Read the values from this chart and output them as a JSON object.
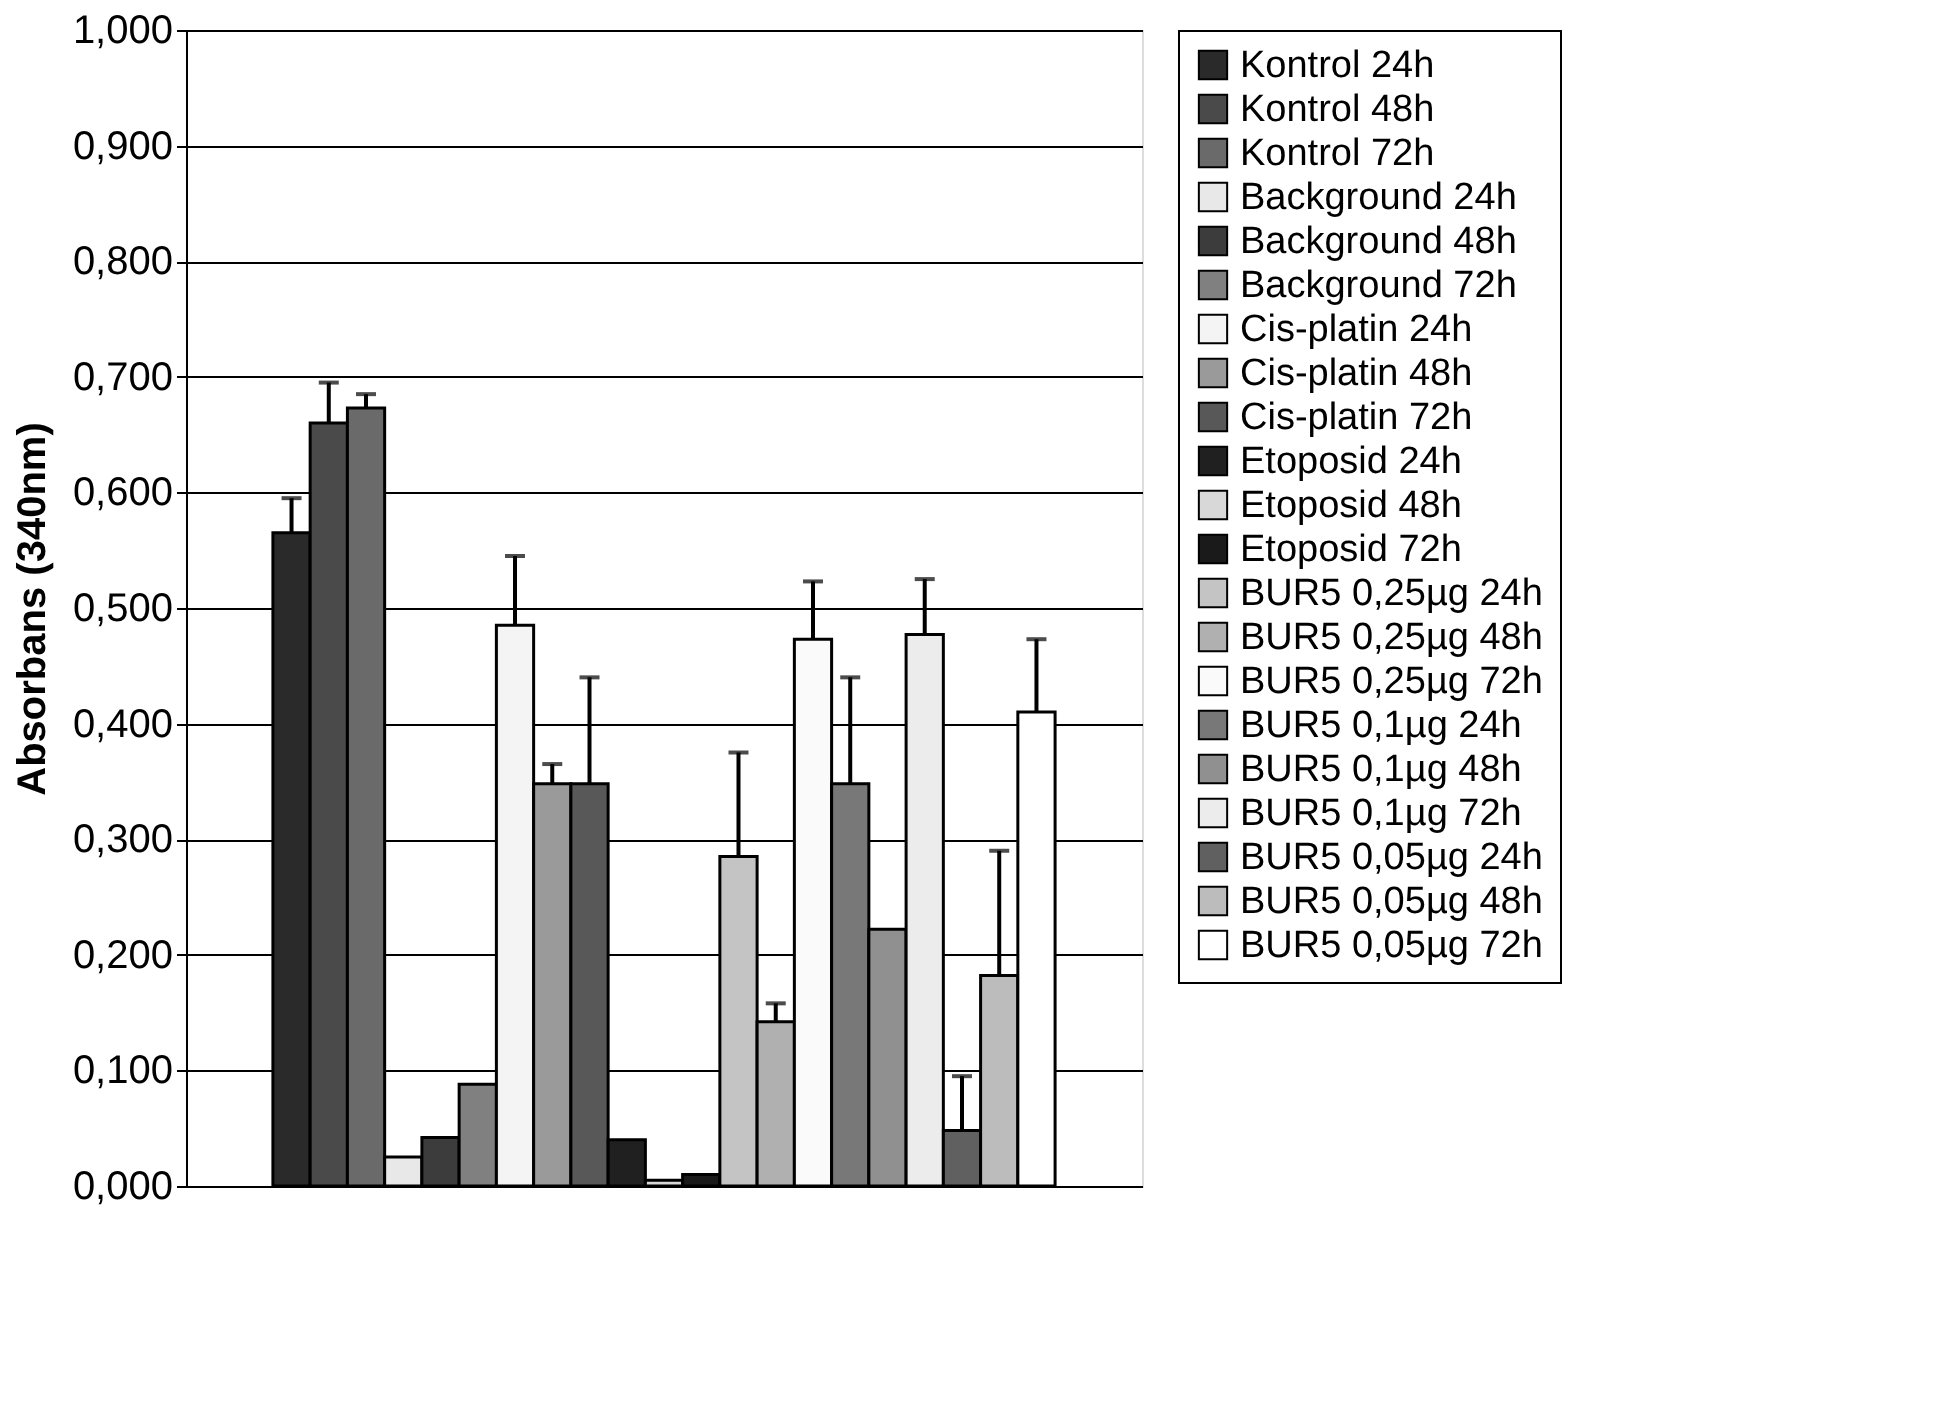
{
  "chart_data": {
    "type": "bar",
    "ylabel": "Absorbans (340nm)",
    "categories": [
      null
    ],
    "ylim": [
      0,
      1
    ],
    "yticks": [
      {
        "value": 0,
        "label": "0,000"
      },
      {
        "value": 0.1,
        "label": "0,100"
      },
      {
        "value": 0.2,
        "label": "0,200"
      },
      {
        "value": 0.3,
        "label": "0,300"
      },
      {
        "value": 0.4,
        "label": "0,400"
      },
      {
        "value": 0.5,
        "label": "0,500"
      },
      {
        "value": 0.6,
        "label": "0,600"
      },
      {
        "value": 0.7,
        "label": "0,700"
      },
      {
        "value": 0.8,
        "label": "0,800"
      },
      {
        "value": 0.9,
        "label": "0,900"
      },
      {
        "value": 1,
        "label": "1,000"
      }
    ],
    "grid": "y",
    "legend": "right",
    "tick_labels": "y",
    "series": [
      {
        "name": "Kontrol 24h",
        "color": "#2a2a2a",
        "values": [
          0.565
        ],
        "errors": [
          0.03
        ]
      },
      {
        "name": "Kontrol 48h",
        "color": "#4a4a4a",
        "values": [
          0.66
        ],
        "errors": [
          0.035
        ]
      },
      {
        "name": "Kontrol 72h",
        "color": "#6a6a6a",
        "values": [
          0.673
        ],
        "errors": [
          0.012
        ]
      },
      {
        "name": "Background 24h",
        "color": "#e8e8e8",
        "values": [
          0.025
        ]
      },
      {
        "name": "Background 48h",
        "color": "#3c3c3c",
        "values": [
          0.042
        ]
      },
      {
        "name": "Background 72h",
        "color": "#808080",
        "values": [
          0.088
        ]
      },
      {
        "name": "Cis-platin 24h",
        "color": "#f4f4f4",
        "values": [
          0.485
        ],
        "errors": [
          0.06
        ]
      },
      {
        "name": "Cis-platin 48h",
        "color": "#9a9a9a",
        "values": [
          0.348
        ],
        "errors": [
          0.017
        ]
      },
      {
        "name": "Cis-platin 72h",
        "color": "#585858",
        "values": [
          0.348
        ],
        "errors": [
          0.092
        ]
      },
      {
        "name": "Etoposid 24h",
        "color": "#202020",
        "values": [
          0.04
        ]
      },
      {
        "name": "Etoposid 48h",
        "color": "#d8d8d8",
        "values": [
          0.005
        ]
      },
      {
        "name": "Etoposid 72h",
        "color": "#1a1a1a",
        "values": [
          0.01
        ]
      },
      {
        "name": "BUR5 0,25µg 24h",
        "color": "#c4c4c4",
        "values": [
          0.285
        ],
        "errors": [
          0.09
        ]
      },
      {
        "name": "BUR5 0,25µg 48h",
        "color": "#b0b0b0",
        "values": [
          0.142
        ],
        "errors": [
          0.016
        ]
      },
      {
        "name": "BUR5 0,25µg 72h",
        "color": "#fafafa",
        "values": [
          0.473
        ],
        "errors": [
          0.05
        ]
      },
      {
        "name": "BUR5 0,1µg 24h",
        "color": "#787878",
        "values": [
          0.348
        ],
        "errors": [
          0.092
        ]
      },
      {
        "name": "BUR5 0,1µg 48h",
        "color": "#909090",
        "values": [
          0.222
        ]
      },
      {
        "name": "BUR5 0,1µg 72h",
        "color": "#ececec",
        "values": [
          0.477
        ],
        "errors": [
          0.048
        ]
      },
      {
        "name": "BUR5 0,05µg 24h",
        "color": "#606060",
        "values": [
          0.048
        ],
        "errors": [
          0.047
        ]
      },
      {
        "name": "BUR5 0,05µg 48h",
        "color": "#bcbcbc",
        "values": [
          0.182
        ],
        "errors": [
          0.108
        ]
      },
      {
        "name": "BUR5 0,05µg 72h",
        "color": "#ffffff",
        "values": [
          0.41
        ],
        "errors": [
          0.063
        ]
      }
    ]
  }
}
